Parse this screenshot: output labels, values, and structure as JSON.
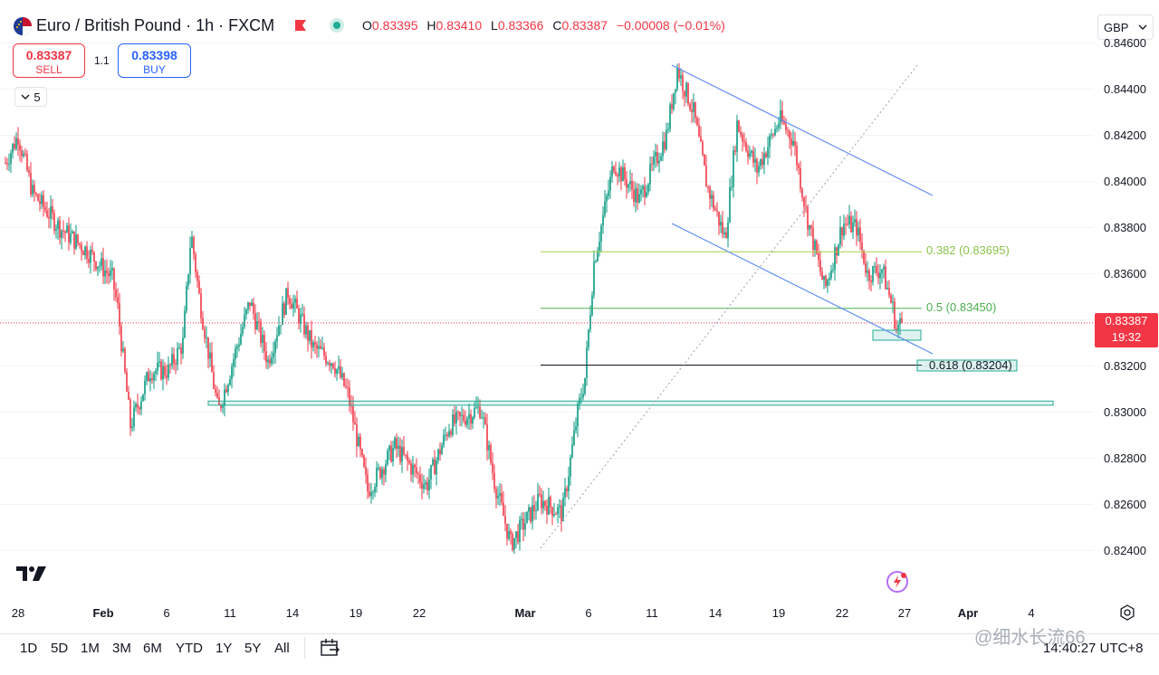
{
  "header": {
    "title": "Euro / British Pound · 1h · FXCM",
    "ohlc": {
      "o_label": "O",
      "o": "0.83395",
      "h_label": "H",
      "h": "0.83410",
      "l_label": "L",
      "l": "0.83366",
      "c_label": "C",
      "c": "0.83387",
      "change": "−0.00008 (−0.01%)"
    }
  },
  "trade": {
    "sell_price": "0.83387",
    "sell_label": "SELL",
    "spread": "1.1",
    "buy_price": "0.83398",
    "buy_label": "BUY"
  },
  "indicators_toggle": {
    "count": "5"
  },
  "currency": {
    "label": "GBP"
  },
  "price_box": {
    "price": "0.83387",
    "countdown": "19:32"
  },
  "fib_labels": [
    {
      "text": "0.382 (0.83695)",
      "color": "#8bc34a"
    },
    {
      "text": "0.5 (0.83450)",
      "color": "#4caf50"
    },
    {
      "text": "0.618 (0.83204)",
      "color": "#131722"
    }
  ],
  "range_buttons": [
    "1D",
    "5D",
    "1M",
    "3M",
    "6M",
    "YTD",
    "1Y",
    "5Y",
    "All"
  ],
  "clock": "14:40:27 UTC+8",
  "watermark": "@细水长流66",
  "chart_data": {
    "type": "candlestick",
    "y_ticks": [
      "0.84600",
      "0.84400",
      "0.84200",
      "0.84000",
      "0.83800",
      "0.83600",
      "0.83400",
      "0.83200",
      "0.83000",
      "0.82800",
      "0.82600",
      "0.82400"
    ],
    "ylim": [
      0.8236,
      0.846
    ],
    "x_ticks": [
      "28",
      "Feb",
      "6",
      "11",
      "14",
      "19",
      "22",
      "Mar",
      "6",
      "11",
      "14",
      "19",
      "22",
      "27",
      "Apr",
      "4"
    ],
    "anchors": [
      {
        "t": 0,
        "p": 0.8408
      },
      {
        "t": 14,
        "p": 0.842
      },
      {
        "t": 30,
        "p": 0.8395
      },
      {
        "t": 60,
        "p": 0.838
      },
      {
        "t": 90,
        "p": 0.837
      },
      {
        "t": 118,
        "p": 0.8358
      },
      {
        "t": 124,
        "p": 0.8345
      },
      {
        "t": 138,
        "p": 0.8294
      },
      {
        "t": 160,
        "p": 0.8318
      },
      {
        "t": 180,
        "p": 0.8318
      },
      {
        "t": 196,
        "p": 0.833
      },
      {
        "t": 205,
        "p": 0.8378
      },
      {
        "t": 214,
        "p": 0.835
      },
      {
        "t": 235,
        "p": 0.83
      },
      {
        "t": 270,
        "p": 0.8348
      },
      {
        "t": 290,
        "p": 0.8322
      },
      {
        "t": 312,
        "p": 0.8352
      },
      {
        "t": 340,
        "p": 0.8328
      },
      {
        "t": 362,
        "p": 0.8322
      },
      {
        "t": 378,
        "p": 0.8308
      },
      {
        "t": 400,
        "p": 0.8266
      },
      {
        "t": 430,
        "p": 0.8285
      },
      {
        "t": 465,
        "p": 0.8268
      },
      {
        "t": 490,
        "p": 0.8294
      },
      {
        "t": 525,
        "p": 0.8302
      },
      {
        "t": 540,
        "p": 0.827
      },
      {
        "t": 558,
        "p": 0.8243
      },
      {
        "t": 590,
        "p": 0.8262
      },
      {
        "t": 615,
        "p": 0.8256
      },
      {
        "t": 632,
        "p": 0.83
      },
      {
        "t": 640,
        "p": 0.8315
      },
      {
        "t": 650,
        "p": 0.8365
      },
      {
        "t": 672,
        "p": 0.8408
      },
      {
        "t": 700,
        "p": 0.8392
      },
      {
        "t": 730,
        "p": 0.842
      },
      {
        "t": 742,
        "p": 0.8449
      },
      {
        "t": 760,
        "p": 0.843
      },
      {
        "t": 775,
        "p": 0.8398
      },
      {
        "t": 795,
        "p": 0.8375
      },
      {
        "t": 808,
        "p": 0.8425
      },
      {
        "t": 830,
        "p": 0.8405
      },
      {
        "t": 855,
        "p": 0.8427
      },
      {
        "t": 870,
        "p": 0.8418
      },
      {
        "t": 885,
        "p": 0.8385
      },
      {
        "t": 905,
        "p": 0.8353
      },
      {
        "t": 925,
        "p": 0.8382
      },
      {
        "t": 940,
        "p": 0.838
      },
      {
        "t": 952,
        "p": 0.836
      },
      {
        "t": 968,
        "p": 0.8362
      },
      {
        "t": 980,
        "p": 0.8345
      },
      {
        "t": 984,
        "p": 0.8336
      },
      {
        "t": 990,
        "p": 0.8339
      }
    ],
    "fib_levels": [
      {
        "ratio": "0.382",
        "price": 0.83695
      },
      {
        "ratio": "0.5",
        "price": 0.8345
      },
      {
        "ratio": "0.618",
        "price": 0.83204
      }
    ],
    "support_zone": {
      "from": 0.8303,
      "to": 0.83048
    },
    "current_price": 0.83387
  }
}
